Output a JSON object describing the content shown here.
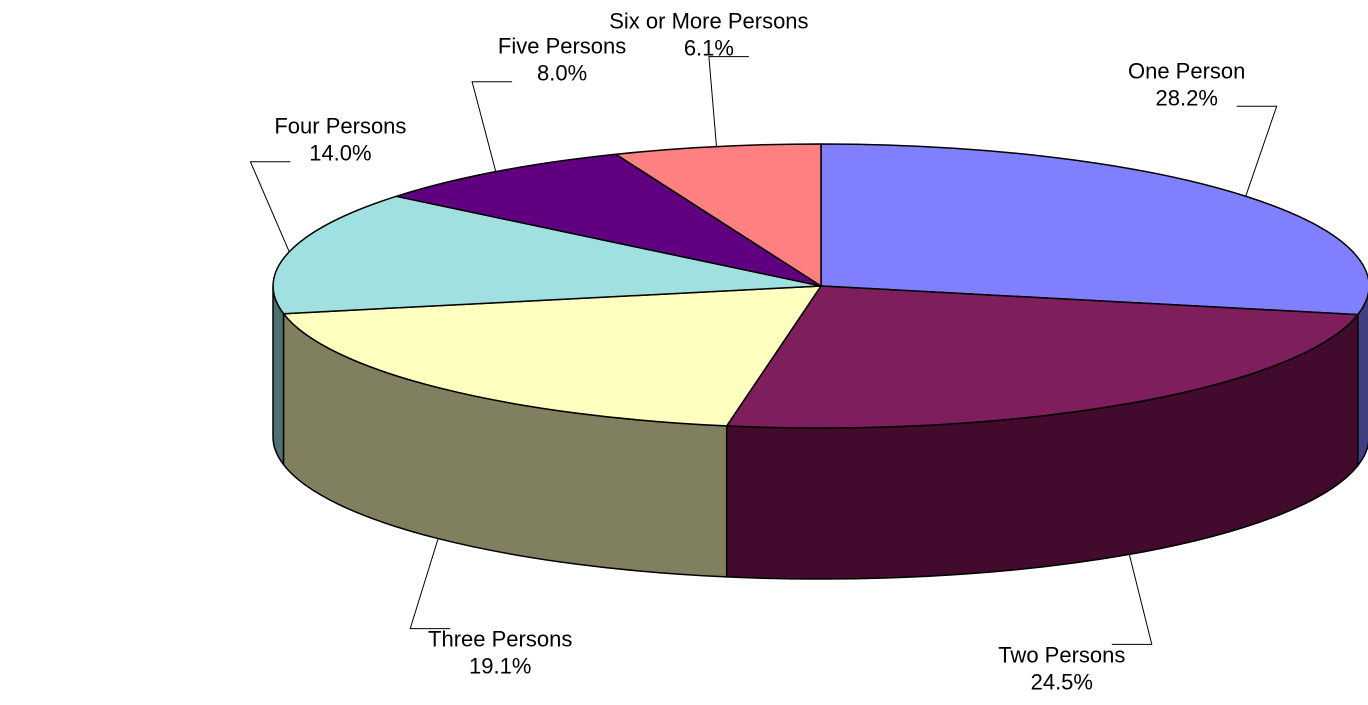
{
  "chart_data": {
    "type": "pie",
    "style": "3d",
    "title": "",
    "legend": "none",
    "slices": [
      {
        "label": "One Person",
        "value": 28.2,
        "value_label": "28.2%",
        "color": "#8080FF",
        "side_color": "#404080"
      },
      {
        "label": "Two Persons",
        "value": 24.5,
        "value_label": "24.5%",
        "color": "#7E1E5C",
        "side_color": "#420B2D"
      },
      {
        "label": "Three Persons",
        "value": 19.1,
        "value_label": "19.1%",
        "color": "#FFFFC0",
        "side_color": "#808060"
      },
      {
        "label": "Four Persons",
        "value": 14.0,
        "value_label": "14.0%",
        "color": "#A0E0E0",
        "side_color": "#507070"
      },
      {
        "label": "Five Persons",
        "value": 8.0,
        "value_label": "8.0%",
        "color": "#600080",
        "side_color": "#300040"
      },
      {
        "label": "Six or More Persons",
        "value": 6.1,
        "value_label": "6.1%",
        "color": "#FF8080",
        "side_color": "#804040"
      }
    ]
  }
}
